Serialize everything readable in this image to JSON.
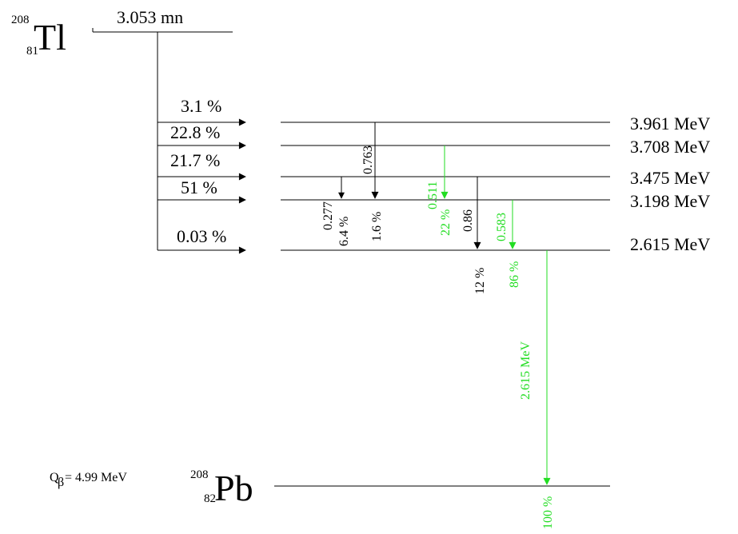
{
  "parent": {
    "mass": "208",
    "z": "81",
    "symbol": "Tl",
    "half_life": "3.053 mn"
  },
  "daughter": {
    "mass": "208",
    "z": "82",
    "symbol": "Pb"
  },
  "q_value": {
    "q": "Q",
    "sub": "β",
    "rest": " = 4.99 MeV"
  },
  "levels": [
    "3.961 MeV",
    "3.708 MeV",
    "3.475 MeV",
    "3.198 MeV",
    "2.615 MeV"
  ],
  "beta_branches": [
    "3.1 %",
    "22.8 %",
    "21.7 %",
    "51 %",
    "0.03 %"
  ],
  "gammas": [
    {
      "energy": "0.277",
      "intensity": "6.4 %",
      "color": "#000000"
    },
    {
      "energy": "0.763",
      "intensity": "1.6 %",
      "color": "#000000"
    },
    {
      "energy": "0.511",
      "intensity": "22 %",
      "color": "#22dd22"
    },
    {
      "energy": "0.86",
      "intensity": "12 %",
      "color": "#000000"
    },
    {
      "energy": "0.583",
      "intensity": "86 %",
      "color": "#22dd22"
    },
    {
      "energy": "2.615 MeV",
      "intensity": "100 %",
      "color": "#22dd22"
    }
  ],
  "colors": {
    "line": "#000000",
    "highlight": "#22dd22"
  }
}
